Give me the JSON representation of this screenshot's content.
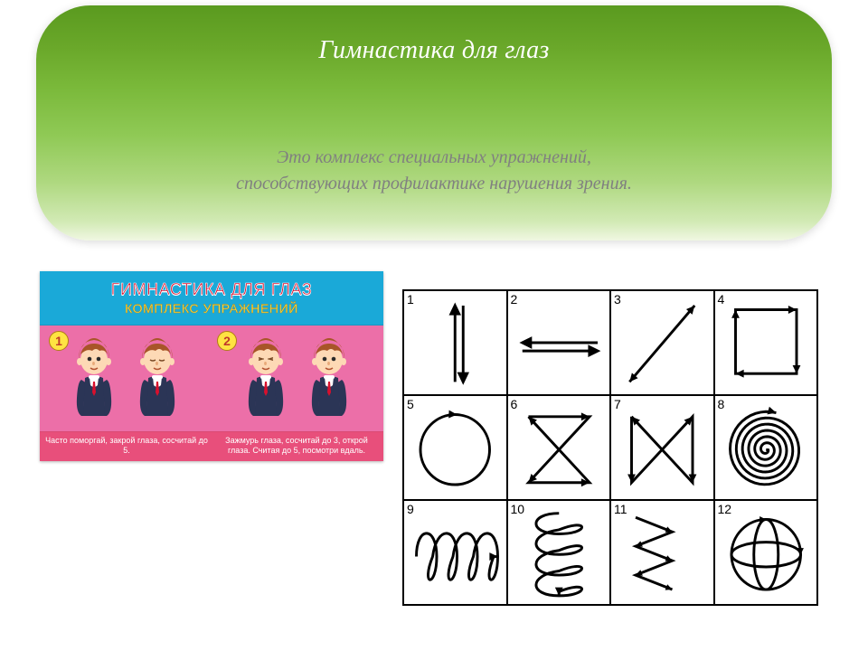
{
  "header": {
    "title": "Гимнастика для глаз",
    "subtitle_line1": "Это комплекс специальных упражнений,",
    "subtitle_line2": "способствующих профилактике нарушения зрения.",
    "gradient_top": "#5a9a1f",
    "gradient_bottom": "#f0f7e2",
    "title_color": "#ffffff",
    "subtitle_color": "#808080",
    "title_fontsize": 28,
    "subtitle_fontsize": 20,
    "border_radius": 60
  },
  "left_card": {
    "header_bg": "#1aa9d8",
    "body_bg": "#ec6fa8",
    "footer_bg": "#e84f7b",
    "title": "ГИМНАСТИКА ДЛЯ ГЛАЗ",
    "subtitle": "КОМПЛЕКС УПРАЖНЕНИЙ",
    "title_color": "#d8102d",
    "subtitle_color": "#ffe342",
    "badge_bg": "#ffe342",
    "badge_text_color": "#c0392b",
    "exercises": [
      {
        "num": "1",
        "caption": "Часто поморгай, закрой глаза, сосчитай до 5.",
        "kids": [
          {
            "eyes": "open"
          },
          {
            "eyes": "closed"
          }
        ]
      },
      {
        "num": "2",
        "caption": "Зажмурь глаза, сосчитай до 3, открой глаза. Считая до 5, посмотри вдаль.",
        "kids": [
          {
            "eyes": "squeeze"
          },
          {
            "eyes": "open"
          }
        ]
      }
    ],
    "kid_colors": {
      "hair": "#a85528",
      "skin": "#fdd9b5",
      "vest": "#2b3556",
      "shirt": "#ffffff",
      "tie": "#d8102d"
    }
  },
  "grid": {
    "rows": 3,
    "cols": 4,
    "border_color": "#000000",
    "stroke_width": 2.6,
    "cells": [
      {
        "num": "1",
        "type": "vertical-double-arrow"
      },
      {
        "num": "2",
        "type": "horizontal-double-arrow"
      },
      {
        "num": "3",
        "type": "diagonal-double-arrow"
      },
      {
        "num": "4",
        "type": "square-cycle"
      },
      {
        "num": "5",
        "type": "circle-cycle"
      },
      {
        "num": "6",
        "type": "hourglass-x"
      },
      {
        "num": "7",
        "type": "bowtie-x"
      },
      {
        "num": "8",
        "type": "spiral"
      },
      {
        "num": "9",
        "type": "horizontal-coil"
      },
      {
        "num": "10",
        "type": "vertical-coil"
      },
      {
        "num": "11",
        "type": "zigzag-vertical"
      },
      {
        "num": "12",
        "type": "sphere-orbits"
      }
    ]
  }
}
